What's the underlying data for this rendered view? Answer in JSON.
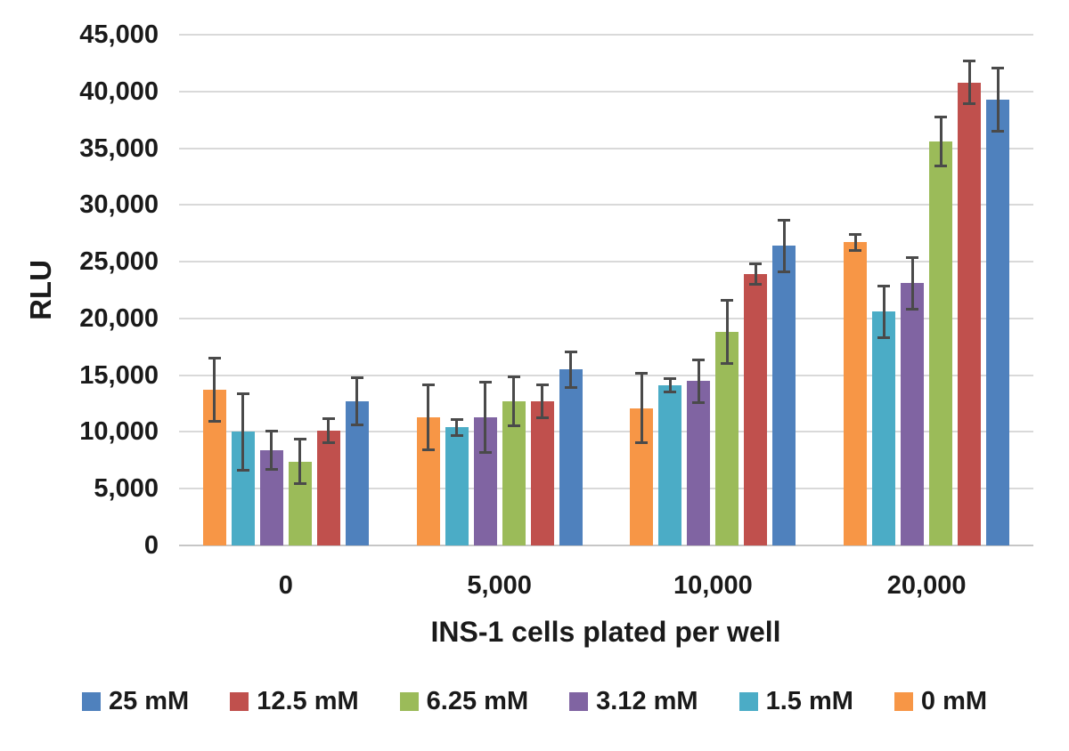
{
  "chart_data": {
    "type": "bar",
    "title": "",
    "xlabel": "INS-1 cells plated per well",
    "ylabel": "RLU",
    "categories": [
      "0",
      "5,000",
      "10,000",
      "20,000"
    ],
    "y_ticks": [
      "0",
      "5,000",
      "10,000",
      "15,000",
      "20,000",
      "25,000",
      "30,000",
      "35,000",
      "40,000",
      "45,000"
    ],
    "ylim": [
      0,
      45000
    ],
    "y_tick_step": 5000,
    "grid": true,
    "legend_position": "bottom",
    "bar_draw_order_in_group": [
      "0 mM",
      "1.5 mM",
      "3.12 mM",
      "6.25 mM",
      "12.5 mM",
      "25 mM"
    ],
    "series": [
      {
        "name": "25 mM",
        "color": "#4F81BD",
        "values": [
          12700,
          15500,
          26400,
          39300
        ],
        "errors": [
          2200,
          1700,
          2400,
          2900
        ]
      },
      {
        "name": "12.5 mM",
        "color": "#C0504D",
        "values": [
          10100,
          12700,
          23900,
          40800
        ],
        "errors": [
          1200,
          1600,
          1000,
          2000
        ]
      },
      {
        "name": "6.25 mM",
        "color": "#9BBB59",
        "values": [
          7400,
          12700,
          18800,
          35600
        ],
        "errors": [
          2100,
          2300,
          2900,
          2300
        ]
      },
      {
        "name": "3.12 mM",
        "color": "#8064A2",
        "values": [
          8400,
          11300,
          14500,
          23100
        ],
        "errors": [
          1800,
          3200,
          2000,
          2400
        ]
      },
      {
        "name": "1.5 mM",
        "color": "#4BACC6",
        "values": [
          10000,
          10400,
          14100,
          20600
        ],
        "errors": [
          3500,
          800,
          700,
          2400
        ]
      },
      {
        "name": "0 mM",
        "color": "#F79646",
        "values": [
          13700,
          11300,
          12100,
          26700
        ],
        "errors": [
          2900,
          3000,
          3200,
          800
        ]
      }
    ],
    "colors": {
      "gridline": "#d9d9d9",
      "axis_line": "#c6c6c6",
      "error_bar": "#4a4a4a",
      "text": "#1a1a1a",
      "background": "#ffffff"
    }
  }
}
